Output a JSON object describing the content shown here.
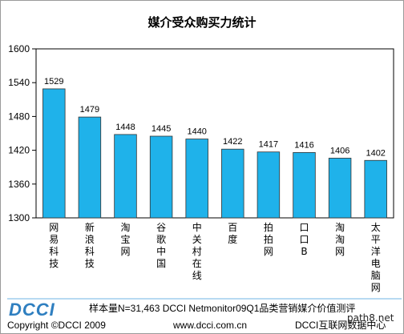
{
  "chart_data": {
    "type": "bar",
    "title": "媒介受众购买力统计",
    "categories": [
      "网易科技",
      "新浪科技",
      "淘宝网",
      "谷歌中国",
      "中关村在线",
      "百度",
      "拍拍网",
      "口口B",
      "淘淘网",
      "太平洋电脑网"
    ],
    "values": [
      1529,
      1479,
      1448,
      1445,
      1440,
      1422,
      1417,
      1416,
      1406,
      1402
    ],
    "ylim": [
      1300,
      1600
    ],
    "yticks": [
      1300,
      1360,
      1420,
      1480,
      1540,
      1600
    ],
    "grid": false,
    "bar_color": "#1fb2ea"
  },
  "footer": {
    "logo": "DCCI",
    "sample_note": "样本量N=31,463 DCCI Netmonitor09Q1品类营销媒介价值测评",
    "copyright": "Copyright ©DCCI 2009",
    "website": "www.dcci.com.cn",
    "center": "DCCI互联网数据中心",
    "watermark": "path8.net"
  }
}
